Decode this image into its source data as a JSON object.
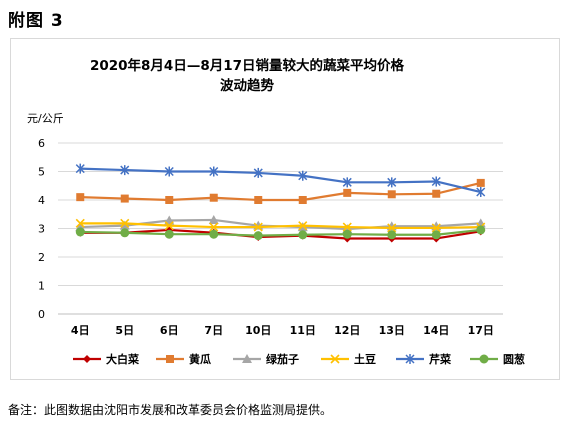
{
  "page": {
    "heading": "附图 3",
    "footnote": "备注：此图数据由沈阳市发展和改革委员会价格监测局提供。"
  },
  "chart_data": {
    "type": "line",
    "title_line1": "2020年8月4日—8月17日销量较大的蔬菜平均价格",
    "title_line2": "波动趋势",
    "ylabel": "元/公斤",
    "xlabel": "",
    "categories": [
      "4日",
      "5日",
      "6日",
      "7日",
      "10日",
      "11日",
      "12日",
      "13日",
      "14日",
      "17日"
    ],
    "y_ticks": [
      "0",
      "1",
      "2",
      "3",
      "4",
      "5",
      "6"
    ],
    "ylim": [
      0,
      6
    ],
    "grid": "horizontal",
    "legend_position": "bottom",
    "series": [
      {
        "name": "大白菜",
        "color": "#C00000",
        "marker": "diamond",
        "values": [
          2.85,
          2.85,
          2.95,
          2.85,
          2.7,
          2.75,
          2.65,
          2.65,
          2.65,
          2.9
        ]
      },
      {
        "name": "黄瓜",
        "color": "#E07B30",
        "marker": "square",
        "values": [
          4.1,
          4.05,
          4.0,
          4.08,
          4.0,
          4.0,
          4.25,
          4.2,
          4.22,
          4.6
        ]
      },
      {
        "name": "绿茄子",
        "color": "#A6A6A6",
        "marker": "triangle",
        "values": [
          3.05,
          3.1,
          3.28,
          3.3,
          3.1,
          3.05,
          2.98,
          3.08,
          3.08,
          3.18
        ]
      },
      {
        "name": "土豆",
        "color": "#FFC000",
        "marker": "x",
        "values": [
          3.18,
          3.18,
          3.1,
          3.05,
          3.05,
          3.1,
          3.05,
          3.02,
          3.02,
          3.05
        ]
      },
      {
        "name": "芹菜",
        "color": "#4472C4",
        "marker": "star",
        "values": [
          5.1,
          5.05,
          5.0,
          5.0,
          4.95,
          4.85,
          4.62,
          4.62,
          4.65,
          4.28
        ]
      },
      {
        "name": "圆葱",
        "color": "#70AD47",
        "marker": "circle",
        "values": [
          2.88,
          2.85,
          2.8,
          2.8,
          2.75,
          2.78,
          2.8,
          2.78,
          2.78,
          2.95
        ]
      }
    ]
  }
}
